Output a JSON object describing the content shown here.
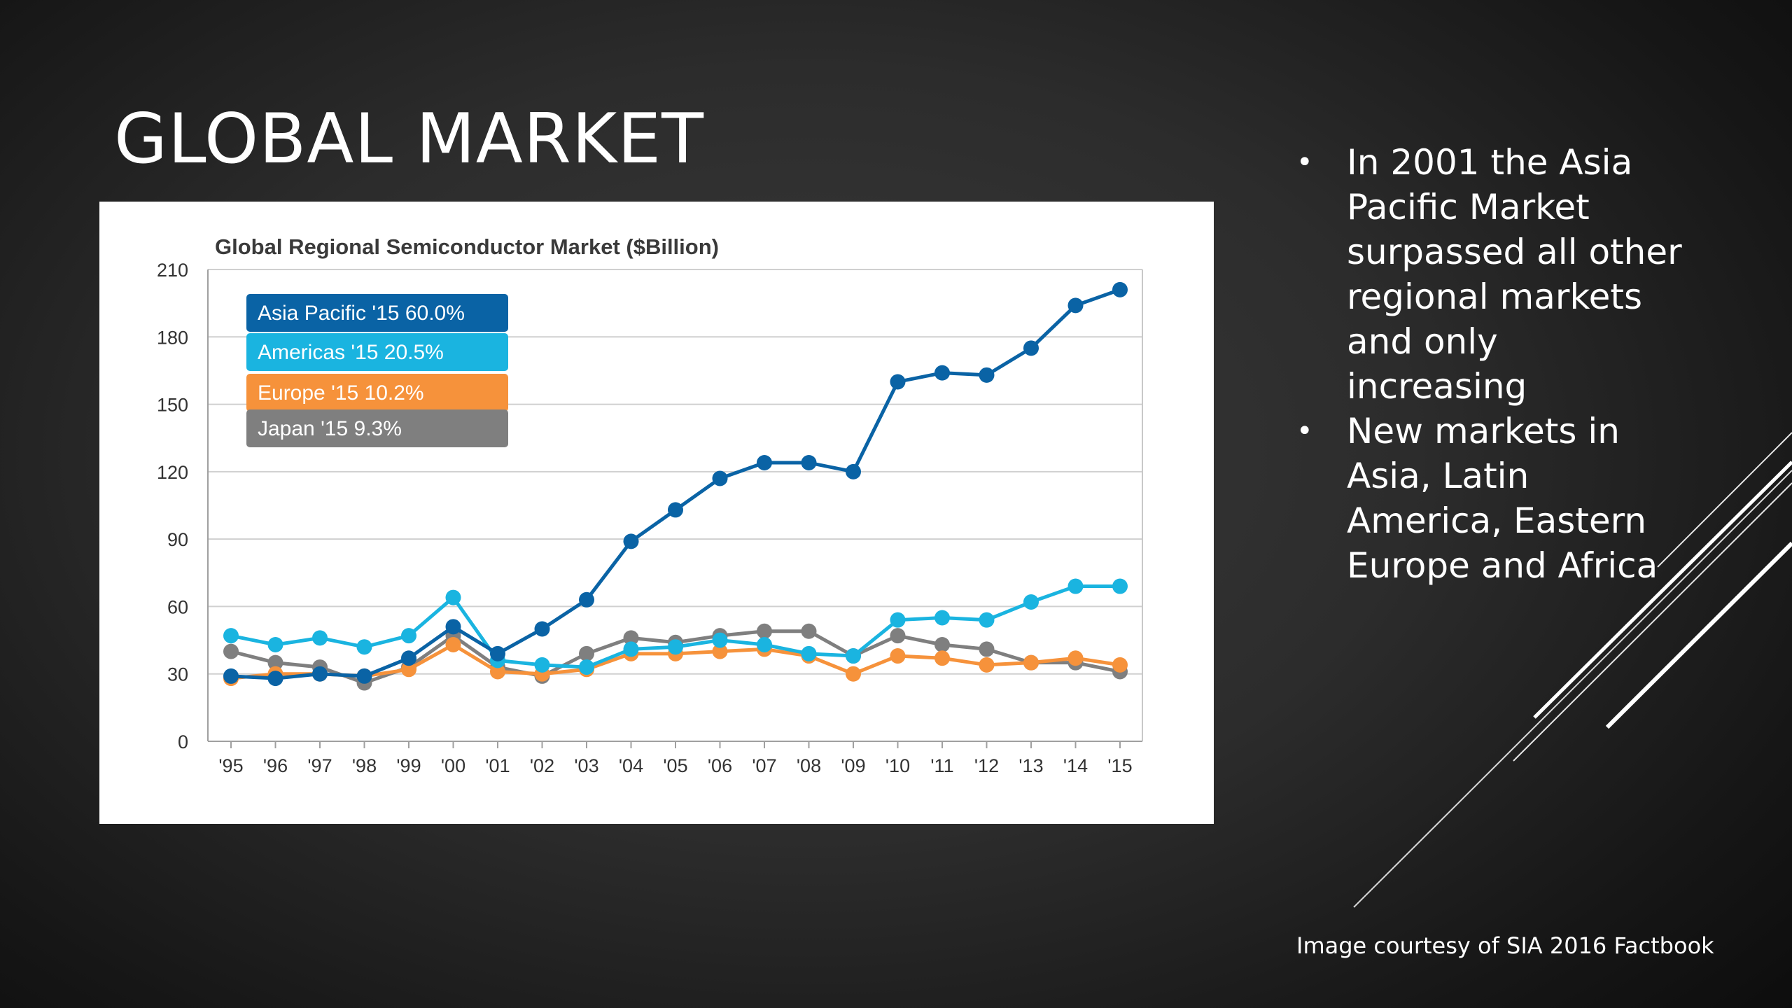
{
  "slide": {
    "title": "GLOBAL MARKET",
    "bullets": [
      "In 2001 the Asia Pacific Market surpassed all other regional markets and only increasing",
      "New markets in Asia, Latin America, Eastern Europe and Africa"
    ],
    "caption": "Image courtesy of SIA 2016 Factbook"
  },
  "chart_data": {
    "type": "line",
    "title": "Global Regional Semiconductor Market ($Billion)",
    "xlabel": "",
    "ylabel": "",
    "ylim": [
      0,
      210
    ],
    "yticks": [
      0,
      30,
      60,
      90,
      120,
      150,
      180,
      210
    ],
    "grid": true,
    "legend_position": "top-left",
    "categories": [
      "'95",
      "'96",
      "'97",
      "'98",
      "'99",
      "'00",
      "'01",
      "'02",
      "'03",
      "'04",
      "'05",
      "'06",
      "'07",
      "'08",
      "'09",
      "'10",
      "'11",
      "'12",
      "'13",
      "'14",
      "'15"
    ],
    "series": [
      {
        "name": "Asia Pacific",
        "legend_label": "Asia Pacific '15  60.0%",
        "color": "#0a63a5",
        "values": [
          29,
          28,
          30,
          29,
          37,
          51,
          39,
          50,
          63,
          89,
          103,
          117,
          124,
          124,
          120,
          160,
          164,
          163,
          175,
          194,
          201
        ]
      },
      {
        "name": "Americas",
        "legend_label": "Americas '15  20.5%",
        "color": "#1ab4e0",
        "values": [
          47,
          43,
          46,
          42,
          47,
          64,
          36,
          34,
          33,
          41,
          42,
          45,
          43,
          39,
          38,
          54,
          55,
          54,
          62,
          69,
          69
        ]
      },
      {
        "name": "Europe",
        "legend_label": "Europe '15  10.2%",
        "color": "#f6923b",
        "values": [
          28,
          30,
          30,
          29,
          32,
          43,
          31,
          30,
          32,
          39,
          39,
          40,
          41,
          38,
          30,
          38,
          37,
          34,
          35,
          37,
          34
        ]
      },
      {
        "name": "Japan",
        "legend_label": "Japan '15  9.3%",
        "color": "#7f7f7f",
        "values": [
          40,
          35,
          33,
          26,
          33,
          47,
          33,
          29,
          39,
          46,
          44,
          47,
          49,
          49,
          38,
          47,
          43,
          41,
          35,
          35,
          31
        ]
      }
    ],
    "draw_order": [
      3,
      2,
      1,
      0
    ]
  }
}
